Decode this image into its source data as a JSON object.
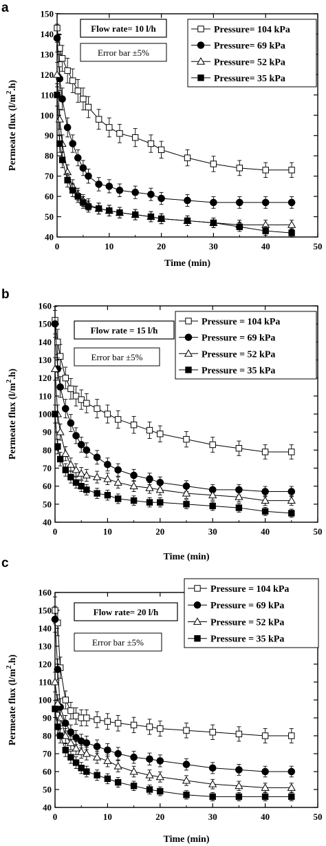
{
  "chart_data": [
    {
      "panel": "a",
      "type": "scatter",
      "xlabel": "Time (min)",
      "ylabel": "Permeate flux (l/m².h)",
      "ylabel_main": "Permeate flux (l/m",
      "ylabel_sup": "2",
      "ylabel_end": ".h)",
      "xlim": [
        0,
        50
      ],
      "ylim": [
        40,
        150
      ],
      "xticks": [
        0,
        10,
        20,
        30,
        40,
        50
      ],
      "yticks": [
        40,
        50,
        60,
        70,
        80,
        90,
        100,
        110,
        120,
        130,
        140,
        150
      ],
      "error_bar": "Error bar ±5%",
      "annotations": [
        "Flow rate= 10 l/h",
        "Error bar ±5%"
      ],
      "legend_position": "top-right",
      "x": [
        0,
        0.5,
        1,
        2,
        3,
        4,
        5,
        6,
        8,
        10,
        12,
        15,
        18,
        20,
        25,
        30,
        35,
        40,
        45
      ],
      "series": [
        {
          "name": "Pressure= 104 kPa",
          "marker": "open-square",
          "values": [
            143,
            133,
            128,
            122,
            117,
            112,
            108,
            104,
            98,
            94,
            91,
            89,
            86,
            83,
            79,
            76,
            74,
            73,
            73
          ]
        },
        {
          "name": "Pressure= 69 kPa",
          "marker": "filled-circle",
          "values": [
            138,
            118,
            108,
            94,
            86,
            79,
            74,
            70,
            66,
            65,
            63,
            62,
            61,
            59,
            58,
            57,
            57,
            57,
            57
          ]
        },
        {
          "name": "Pressure= 52 kPa",
          "marker": "open-triangle",
          "values": [
            120,
            98,
            86,
            72,
            65,
            61,
            58,
            56,
            54,
            53,
            52,
            51,
            50,
            49,
            48,
            47,
            46,
            46,
            46
          ]
        },
        {
          "name": "Pressure= 35 kPa",
          "marker": "filled-square",
          "values": [
            110,
            86,
            78,
            68,
            63,
            60,
            57,
            55,
            54,
            53,
            52,
            51,
            50,
            49,
            48,
            47,
            45,
            43,
            42
          ]
        }
      ]
    },
    {
      "panel": "b",
      "type": "scatter",
      "xlabel": "Time (min)",
      "ylabel": "Permeate flux (l/m².h)",
      "ylabel_main": "Permeate flux (l/m",
      "ylabel_sup": "2",
      "ylabel_end": ".h)",
      "xlim": [
        0,
        50
      ],
      "ylim": [
        40,
        160
      ],
      "xticks": [
        0,
        10,
        20,
        30,
        40,
        50
      ],
      "yticks": [
        40,
        50,
        60,
        70,
        80,
        90,
        100,
        110,
        120,
        130,
        140,
        150,
        160
      ],
      "error_bar": "Error bar ±5%",
      "annotations": [
        "Flow rate = 15 l/h",
        "Error bar ±5%"
      ],
      "legend_position": "top-right",
      "x": [
        0,
        0.5,
        1,
        2,
        3,
        4,
        5,
        6,
        8,
        10,
        12,
        15,
        18,
        20,
        25,
        30,
        35,
        40,
        45
      ],
      "series": [
        {
          "name": "Pressure = 104 kPa",
          "marker": "open-square",
          "values": [
            152,
            140,
            132,
            120,
            114,
            110,
            108,
            106,
            103,
            100,
            97,
            94,
            91,
            89,
            86,
            83,
            81,
            79,
            79
          ]
        },
        {
          "name": "Pressure = 69 kPa",
          "marker": "filled-circle",
          "values": [
            150,
            125,
            115,
            103,
            95,
            88,
            83,
            80,
            76,
            72,
            69,
            66,
            64,
            62,
            60,
            58,
            58,
            57,
            57
          ]
        },
        {
          "name": "Pressure = 52 kPa",
          "marker": "open-triangle",
          "values": [
            125,
            100,
            90,
            78,
            72,
            69,
            67,
            66,
            65,
            64,
            62,
            60,
            59,
            58,
            56,
            55,
            54,
            52,
            52
          ]
        },
        {
          "name": "Pressure = 35 kPa",
          "marker": "filled-square",
          "values": [
            100,
            82,
            75,
            69,
            65,
            62,
            60,
            58,
            56,
            55,
            53,
            52,
            51,
            51,
            50,
            49,
            48,
            46,
            45
          ]
        }
      ]
    },
    {
      "panel": "c",
      "type": "scatter",
      "xlabel": "Time (min)",
      "ylabel": "Permeate flux (l/m².h)",
      "ylabel_main": "Permeate flux (l/m",
      "ylabel_sup": "2",
      "ylabel_end": ".h)",
      "xlim": [
        0,
        50
      ],
      "ylim": [
        40,
        160
      ],
      "xticks": [
        0,
        10,
        20,
        30,
        40,
        50
      ],
      "yticks": [
        40,
        50,
        60,
        70,
        80,
        90,
        100,
        110,
        120,
        130,
        140,
        150,
        160
      ],
      "error_bar": "Error bar ±5%",
      "annotations": [
        "Flow rate= 20 l/h",
        "Error bar ±5%"
      ],
      "legend_position": "top-right",
      "x": [
        0,
        0.5,
        1,
        2,
        3,
        4,
        5,
        6,
        8,
        10,
        12,
        15,
        18,
        20,
        25,
        30,
        35,
        40,
        45
      ],
      "series": [
        {
          "name": "Pressure = 104 kPa",
          "marker": "open-square",
          "values": [
            150,
            143,
            118,
            100,
            94,
            91,
            90,
            90,
            89,
            88,
            87,
            86,
            85,
            84,
            83,
            82,
            81,
            80,
            80
          ]
        },
        {
          "name": "Pressure = 69 kPa",
          "marker": "filled-circle",
          "values": [
            145,
            117,
            96,
            87,
            82,
            79,
            77,
            76,
            74,
            72,
            70,
            68,
            67,
            66,
            64,
            62,
            61,
            60,
            60
          ]
        },
        {
          "name": "Pressure = 52 kPa",
          "marker": "open-triangle",
          "values": [
            110,
            98,
            90,
            80,
            76,
            73,
            71,
            70,
            68,
            66,
            63,
            60,
            58,
            57,
            55,
            53,
            52,
            51,
            51
          ]
        },
        {
          "name": "Pressure = 35 kPa",
          "marker": "filled-square",
          "values": [
            95,
            85,
            80,
            72,
            68,
            65,
            62,
            60,
            58,
            56,
            54,
            52,
            50,
            49,
            47,
            46,
            46,
            46,
            46
          ]
        }
      ]
    }
  ]
}
